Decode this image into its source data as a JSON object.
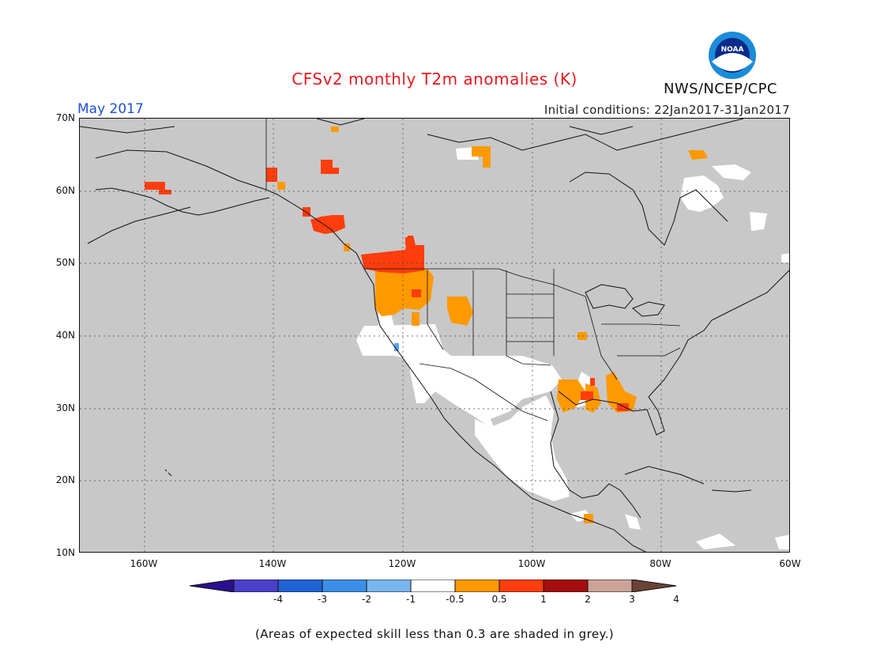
{
  "title": "CFSv2 monthly T2m anomalies (K)",
  "month": "May 2017",
  "agency": "NWS/NCEP/CPC",
  "logo_text": "NOAA",
  "initial_conditions": "Initial conditions: 22Jan2017-31Jan2017",
  "footnote": "(Areas of expected skill less than 0.3 are shaded in grey.)",
  "lat_labels": [
    "70N",
    "60N",
    "50N",
    "40N",
    "30N",
    "20N",
    "10N"
  ],
  "lon_labels": [
    "160W",
    "140W",
    "120W",
    "100W",
    "80W",
    "60W"
  ],
  "colorbar": {
    "tick_labels": [
      "-4",
      "-3",
      "-2",
      "-1",
      "-0.5",
      "0.5",
      "1",
      "2",
      "3",
      "4"
    ],
    "colors": [
      "#2a0f8f",
      "#4a40c9",
      "#1f63d6",
      "#3c8fe8",
      "#79b5ee",
      "#ffffff",
      "#ff9900",
      "#ff3d0d",
      "#a50e0e",
      "#cba497",
      "#6b4334"
    ]
  },
  "colors": {
    "grey_skill_mask": "#c8c8c8",
    "no_anomaly": "#ffffff",
    "warm_0_5_to_1": "#ff9900",
    "warm_1_to_2": "#ff3d0d"
  }
}
